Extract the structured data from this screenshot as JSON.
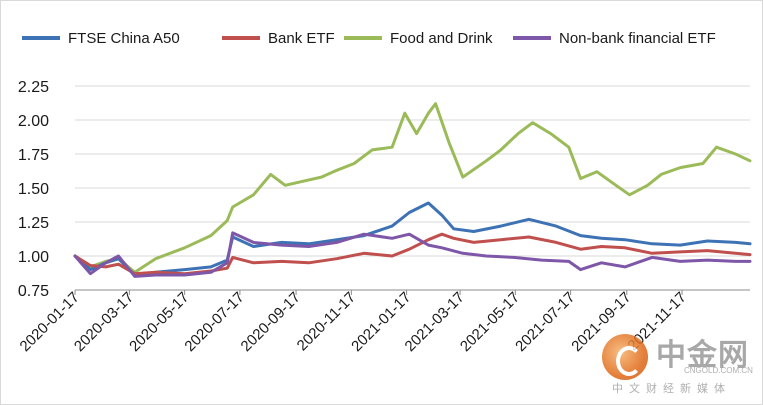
{
  "chart_data": {
    "type": "line",
    "title": "",
    "xlabel": "",
    "ylabel": "",
    "ylim": [
      0.75,
      2.25
    ],
    "yticks": [
      "0.75",
      "1.00",
      "1.25",
      "1.50",
      "1.75",
      "2.00",
      "2.25"
    ],
    "xlim": [
      "2020-01-17",
      "2022-01-31"
    ],
    "xticks": [
      "2020-01-17",
      "2020-03-17",
      "2020-05-17",
      "2020-07-17",
      "2020-09-17",
      "2020-11-17",
      "2021-01-17",
      "2021-03-17",
      "2021-05-17",
      "2021-07-17",
      "2021-09-17",
      "2021-11-17"
    ],
    "grid": "horizontal",
    "legend_position": "top",
    "series": [
      {
        "name": "FTSE China A50",
        "color": "#3d72b4",
        "points": [
          [
            "2020-01-17",
            1.0
          ],
          [
            "2020-02-03",
            0.9
          ],
          [
            "2020-02-20",
            0.95
          ],
          [
            "2020-03-05",
            0.98
          ],
          [
            "2020-03-23",
            0.86
          ],
          [
            "2020-04-15",
            0.88
          ],
          [
            "2020-05-17",
            0.9
          ],
          [
            "2020-06-15",
            0.92
          ],
          [
            "2020-07-03",
            0.97
          ],
          [
            "2020-07-09",
            1.14
          ],
          [
            "2020-08-01",
            1.07
          ],
          [
            "2020-09-01",
            1.1
          ],
          [
            "2020-10-01",
            1.09
          ],
          [
            "2020-11-01",
            1.12
          ],
          [
            "2020-12-01",
            1.15
          ],
          [
            "2021-01-01",
            1.22
          ],
          [
            "2021-01-20",
            1.32
          ],
          [
            "2021-02-10",
            1.39
          ],
          [
            "2021-02-25",
            1.3
          ],
          [
            "2021-03-10",
            1.2
          ],
          [
            "2021-04-01",
            1.18
          ],
          [
            "2021-05-01",
            1.22
          ],
          [
            "2021-06-01",
            1.27
          ],
          [
            "2021-07-01",
            1.22
          ],
          [
            "2021-07-28",
            1.15
          ],
          [
            "2021-08-20",
            1.13
          ],
          [
            "2021-09-15",
            1.12
          ],
          [
            "2021-10-15",
            1.09
          ],
          [
            "2021-11-15",
            1.08
          ],
          [
            "2021-12-15",
            1.11
          ],
          [
            "2022-01-15",
            1.1
          ],
          [
            "2022-01-31",
            1.09
          ]
        ]
      },
      {
        "name": "Bank ETF",
        "color": "#c0504d",
        "points": [
          [
            "2020-01-17",
            1.0
          ],
          [
            "2020-02-03",
            0.93
          ],
          [
            "2020-02-20",
            0.92
          ],
          [
            "2020-03-05",
            0.94
          ],
          [
            "2020-03-23",
            0.87
          ],
          [
            "2020-04-15",
            0.88
          ],
          [
            "2020-05-17",
            0.87
          ],
          [
            "2020-06-15",
            0.89
          ],
          [
            "2020-07-03",
            0.91
          ],
          [
            "2020-07-09",
            0.99
          ],
          [
            "2020-08-01",
            0.95
          ],
          [
            "2020-09-01",
            0.96
          ],
          [
            "2020-10-01",
            0.95
          ],
          [
            "2020-11-01",
            0.98
          ],
          [
            "2020-12-01",
            1.02
          ],
          [
            "2021-01-01",
            1.0
          ],
          [
            "2021-01-20",
            1.05
          ],
          [
            "2021-02-10",
            1.12
          ],
          [
            "2021-02-25",
            1.16
          ],
          [
            "2021-03-10",
            1.13
          ],
          [
            "2021-04-01",
            1.1
          ],
          [
            "2021-05-01",
            1.12
          ],
          [
            "2021-06-01",
            1.14
          ],
          [
            "2021-07-01",
            1.1
          ],
          [
            "2021-07-28",
            1.05
          ],
          [
            "2021-08-20",
            1.07
          ],
          [
            "2021-09-15",
            1.06
          ],
          [
            "2021-10-15",
            1.02
          ],
          [
            "2021-11-15",
            1.03
          ],
          [
            "2021-12-15",
            1.04
          ],
          [
            "2022-01-15",
            1.02
          ],
          [
            "2022-01-31",
            1.01
          ]
        ]
      },
      {
        "name": "Food and Drink",
        "color": "#9bbb59",
        "points": [
          [
            "2020-01-17",
            1.0
          ],
          [
            "2020-02-03",
            0.92
          ],
          [
            "2020-02-20",
            0.96
          ],
          [
            "2020-03-05",
            0.98
          ],
          [
            "2020-03-23",
            0.88
          ],
          [
            "2020-04-15",
            0.98
          ],
          [
            "2020-05-17",
            1.06
          ],
          [
            "2020-06-15",
            1.15
          ],
          [
            "2020-07-03",
            1.26
          ],
          [
            "2020-07-09",
            1.36
          ],
          [
            "2020-08-01",
            1.45
          ],
          [
            "2020-08-20",
            1.6
          ],
          [
            "2020-09-05",
            1.52
          ],
          [
            "2020-09-25",
            1.55
          ],
          [
            "2020-10-15",
            1.58
          ],
          [
            "2020-11-01",
            1.63
          ],
          [
            "2020-11-20",
            1.68
          ],
          [
            "2020-12-10",
            1.78
          ],
          [
            "2021-01-01",
            1.8
          ],
          [
            "2021-01-15",
            2.05
          ],
          [
            "2021-01-28",
            1.9
          ],
          [
            "2021-02-10",
            2.05
          ],
          [
            "2021-02-18",
            2.12
          ],
          [
            "2021-03-05",
            1.83
          ],
          [
            "2021-03-20",
            1.58
          ],
          [
            "2021-04-15",
            1.7
          ],
          [
            "2021-05-01",
            1.78
          ],
          [
            "2021-05-20",
            1.9
          ],
          [
            "2021-06-05",
            1.98
          ],
          [
            "2021-06-25",
            1.9
          ],
          [
            "2021-07-15",
            1.8
          ],
          [
            "2021-07-28",
            1.57
          ],
          [
            "2021-08-15",
            1.62
          ],
          [
            "2021-09-05",
            1.52
          ],
          [
            "2021-09-20",
            1.45
          ],
          [
            "2021-10-10",
            1.52
          ],
          [
            "2021-10-25",
            1.6
          ],
          [
            "2021-11-15",
            1.65
          ],
          [
            "2021-12-10",
            1.68
          ],
          [
            "2021-12-25",
            1.8
          ],
          [
            "2022-01-15",
            1.75
          ],
          [
            "2022-01-31",
            1.7
          ]
        ]
      },
      {
        "name": "Non-bank financial ETF",
        "color": "#7e57a8",
        "points": [
          [
            "2020-01-17",
            1.0
          ],
          [
            "2020-02-03",
            0.87
          ],
          [
            "2020-02-20",
            0.95
          ],
          [
            "2020-03-05",
            1.0
          ],
          [
            "2020-03-23",
            0.85
          ],
          [
            "2020-04-15",
            0.86
          ],
          [
            "2020-05-17",
            0.86
          ],
          [
            "2020-06-15",
            0.88
          ],
          [
            "2020-07-03",
            0.95
          ],
          [
            "2020-07-09",
            1.17
          ],
          [
            "2020-08-01",
            1.1
          ],
          [
            "2020-09-01",
            1.08
          ],
          [
            "2020-10-01",
            1.07
          ],
          [
            "2020-11-01",
            1.1
          ],
          [
            "2020-12-01",
            1.16
          ],
          [
            "2021-01-01",
            1.13
          ],
          [
            "2021-01-20",
            1.16
          ],
          [
            "2021-02-10",
            1.08
          ],
          [
            "2021-02-25",
            1.06
          ],
          [
            "2021-03-20",
            1.02
          ],
          [
            "2021-04-15",
            1.0
          ],
          [
            "2021-05-15",
            0.99
          ],
          [
            "2021-06-15",
            0.97
          ],
          [
            "2021-07-15",
            0.96
          ],
          [
            "2021-07-28",
            0.9
          ],
          [
            "2021-08-20",
            0.95
          ],
          [
            "2021-09-15",
            0.92
          ],
          [
            "2021-10-15",
            0.99
          ],
          [
            "2021-11-15",
            0.96
          ],
          [
            "2021-12-15",
            0.97
          ],
          [
            "2022-01-15",
            0.96
          ],
          [
            "2022-01-31",
            0.96
          ]
        ]
      }
    ]
  },
  "watermark": {
    "cn_name": "中金网",
    "en_domain": "CNGOLD.COM.CN",
    "cn_subtitle": "中文财经新媒体"
  }
}
